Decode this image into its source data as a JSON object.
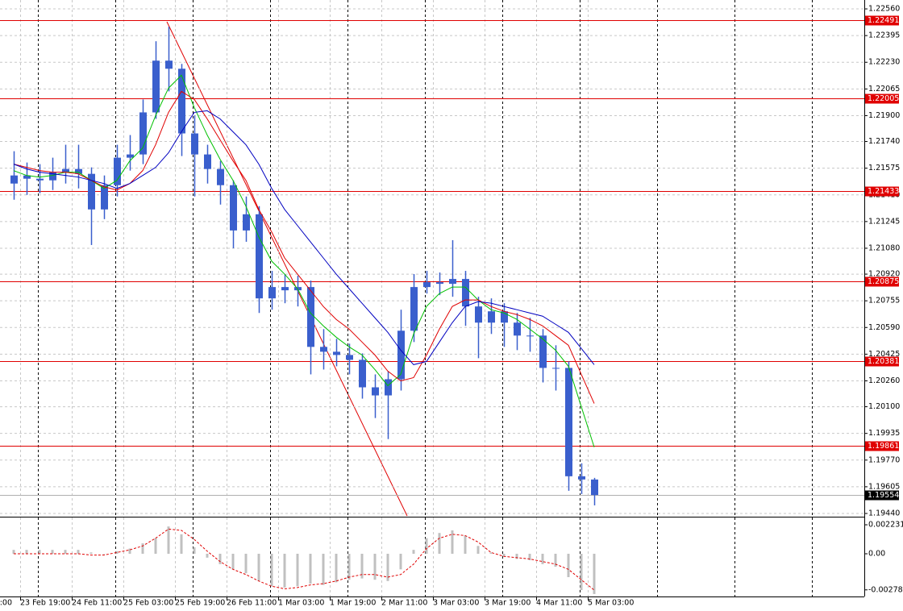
{
  "chart_data": [
    {
      "type": "candlestick",
      "color": "#3a5fcd",
      "categories": [
        null,
        "23 Feb 19:00",
        null,
        null,
        null,
        "24 Feb 11:00",
        null,
        null,
        null,
        "25 Feb 03:00",
        null,
        null,
        null,
        "25 Feb 19:00",
        null,
        null,
        null,
        "26 Feb 11:00",
        null,
        null,
        null,
        "1 Mar 03:00",
        null,
        null,
        null,
        "1 Mar 19:00",
        null,
        null,
        null,
        "2 Mar 11:00",
        null,
        null,
        null,
        "3 Mar 03:00",
        null,
        null,
        null,
        "3 Mar 19:00",
        null,
        null,
        null,
        "4 Mar 11:00",
        null,
        null,
        null,
        "5 Mar 03:00"
      ],
      "x_cut_label": "3:00",
      "open": [
        1.2148,
        1.2153,
        1.2151,
        1.215,
        1.2155,
        1.2157,
        1.2154,
        1.2132,
        1.2147,
        1.2164,
        1.2166,
        1.2192,
        1.2224,
        1.2219,
        1.2179,
        1.2166,
        1.2157,
        1.2147,
        1.2119,
        1.2129,
        1.2077,
        1.2084,
        1.2082,
        1.2084,
        1.2047,
        1.2044,
        1.2042,
        1.2039,
        1.2022,
        1.2017,
        1.2027,
        1.2057,
        1.2084,
        1.2087,
        1.2086,
        1.2089,
        1.2072,
        1.2062,
        1.2069,
        1.2062,
        1.2054,
        1.2054,
        1.2034,
        1.2034,
        1.1967,
        1.1965
      ],
      "high": [
        1.2168,
        1.2161,
        1.216,
        1.2164,
        1.2172,
        1.2172,
        1.2158,
        1.2153,
        1.2172,
        1.2178,
        1.22,
        1.2236,
        1.2245,
        1.2222,
        1.219,
        1.2172,
        1.2162,
        1.215,
        1.214,
        1.2134,
        1.2094,
        1.2092,
        1.2091,
        1.2088,
        1.2058,
        1.2052,
        1.2049,
        1.2043,
        1.203,
        1.2032,
        1.207,
        1.2092,
        1.2094,
        1.2093,
        1.2113,
        1.2094,
        1.2078,
        1.2077,
        1.2074,
        1.2068,
        1.2065,
        1.2058,
        1.2048,
        1.2038,
        1.1975,
        1.1966
      ],
      "low": [
        1.2138,
        1.2141,
        1.2142,
        1.2144,
        1.2148,
        1.2145,
        1.211,
        1.2126,
        1.214,
        1.2156,
        1.216,
        1.2188,
        1.2205,
        1.2165,
        1.214,
        1.2148,
        1.2135,
        1.2108,
        1.2112,
        1.2068,
        1.207,
        1.2074,
        1.2072,
        1.203,
        1.2033,
        1.2035,
        1.203,
        1.2015,
        1.2003,
        1.199,
        1.202,
        1.205,
        1.208,
        1.2079,
        1.2078,
        1.206,
        1.204,
        1.2055,
        1.2047,
        1.2045,
        1.2044,
        1.2025,
        1.202,
        1.1958,
        1.1956,
        1.1949
      ],
      "close": [
        1.2153,
        1.2151,
        1.215,
        1.2155,
        1.2157,
        1.2154,
        1.2132,
        1.2147,
        1.2164,
        1.2166,
        1.2192,
        1.2224,
        1.2219,
        1.2179,
        1.2166,
        1.2157,
        1.2147,
        1.2119,
        1.2129,
        1.2077,
        1.2084,
        1.2082,
        1.2084,
        1.2047,
        1.2044,
        1.2042,
        1.2039,
        1.2022,
        1.2017,
        1.2027,
        1.2057,
        1.2084,
        1.2087,
        1.2086,
        1.2089,
        1.2072,
        1.2062,
        1.2069,
        1.2062,
        1.2054,
        1.2054,
        1.2034,
        1.2034,
        1.1967,
        1.1965,
        1.19554
      ],
      "series": [
        {
          "color": "#00c000",
          "values": [
            1.2156,
            1.2153,
            1.2152,
            1.2153,
            1.2155,
            1.2155,
            1.215,
            1.2145,
            1.215,
            1.2162,
            1.217,
            1.219,
            1.2207,
            1.2215,
            1.2195,
            1.2178,
            1.2163,
            1.215,
            1.2134,
            1.2115,
            1.21,
            1.2092,
            1.2083,
            1.2068,
            1.206,
            1.2053,
            1.2047,
            1.2042,
            1.2033,
            1.2023,
            1.203,
            1.2055,
            1.2072,
            1.208,
            1.2084,
            1.2084,
            1.2076,
            1.207,
            1.2068,
            1.2064,
            1.2058,
            1.2052,
            1.2045,
            1.2035,
            1.201,
            1.1985
          ]
        },
        {
          "color": "#e00000",
          "values": [
            1.216,
            1.2158,
            1.2156,
            1.2155,
            1.2155,
            1.2154,
            1.215,
            1.2146,
            1.2144,
            1.2148,
            1.2156,
            1.2172,
            1.2192,
            1.2205,
            1.22,
            1.2188,
            1.2175,
            1.2162,
            1.215,
            1.2132,
            1.2118,
            1.2102,
            1.2092,
            1.2082,
            1.2072,
            1.2064,
            1.2058,
            1.205,
            1.2042,
            1.2032,
            1.2026,
            1.2028,
            1.2042,
            1.2058,
            1.2072,
            1.2076,
            1.2076,
            1.2072,
            1.2069,
            1.2067,
            1.2064,
            1.206,
            1.2054,
            1.2048,
            1.203,
            1.2012
          ]
        },
        {
          "color": "#0000c0",
          "values": [
            1.216,
            1.2157,
            1.2155,
            1.2154,
            1.2153,
            1.2152,
            1.215,
            1.2148,
            1.2145,
            1.2148,
            1.2153,
            1.2158,
            1.2167,
            1.218,
            1.2192,
            1.2193,
            1.2188,
            1.218,
            1.2172,
            1.216,
            1.2145,
            1.2132,
            1.2122,
            1.2112,
            1.2102,
            1.2092,
            1.2083,
            1.2074,
            1.2065,
            1.2056,
            1.2045,
            1.2036,
            1.2038,
            1.205,
            1.2062,
            1.2072,
            1.2075,
            1.2074,
            1.2072,
            1.207,
            1.2068,
            1.2066,
            1.2061,
            1.2056,
            1.2046,
            1.2036
          ]
        }
      ],
      "levels": [
        1.22491,
        1.22005,
        1.21433,
        1.20875,
        1.20381,
        1.19861
      ],
      "level_color": "#e00000",
      "current_price": 1.19554,
      "ylim": [
        1.19425,
        1.22615
      ],
      "yticks": [
        {
          "value": 1.2256,
          "label": "1.22560"
        },
        1.22395,
        {
          "value": 1.2223,
          "label": "1.22230"
        },
        1.22065,
        {
          "value": 1.219,
          "label": "1.21900"
        },
        {
          "value": 1.2174,
          "label": "1.21740"
        },
        1.21575,
        {
          "value": 1.2141,
          "label": "1.21410"
        },
        1.21245,
        {
          "value": 1.2108,
          "label": "1.21080"
        },
        {
          "value": 1.2092,
          "label": "1.20920"
        },
        1.20755,
        {
          "value": 1.2059,
          "label": "1.20590"
        },
        1.20425,
        {
          "value": 1.2026,
          "label": "1.20260"
        },
        {
          "value": 1.201,
          "label": "1.20100"
        },
        1.19935,
        {
          "value": 1.1977,
          "label": "1.19770"
        },
        1.19605,
        {
          "value": 1.1944,
          "label": "1.19440"
        }
      ],
      "grid": true
    },
    {
      "type": "macd",
      "color": "#c0c0c0",
      "values": [
        0.0003,
        0.0003,
        0.0003,
        0.0003,
        0.0003,
        0.0003,
        0.0001,
        0.0,
        0.0002,
        0.0004,
        0.0008,
        0.0012,
        0.0021,
        0.0015,
        0.0005,
        -0.0003,
        -0.0008,
        -0.0012,
        -0.0015,
        -0.0021,
        -0.0025,
        -0.0026,
        -0.0025,
        -0.0023,
        -0.0024,
        -0.0022,
        -0.002,
        -0.0019,
        -0.002,
        -0.0021,
        -0.0012,
        0.0003,
        0.0012,
        0.0016,
        0.0018,
        0.0014,
        0.0006,
        0.0001,
        -0.0002,
        -0.0004,
        -0.0005,
        -0.0008,
        -0.001,
        -0.0018,
        -0.0028,
        -0.0031
      ],
      "signal": {
        "color": "#e00000",
        "values": [
          0.0,
          0.0,
          0.0,
          0.0,
          0.0,
          0.0,
          -0.0001,
          -0.0001,
          0.0001,
          0.0003,
          0.0006,
          0.0012,
          0.0019,
          0.0018,
          0.0011,
          0.0002,
          -0.0006,
          -0.0012,
          -0.0016,
          -0.0021,
          -0.0025,
          -0.0027,
          -0.0026,
          -0.0024,
          -0.0023,
          -0.0021,
          -0.0018,
          -0.0016,
          -0.0016,
          -0.0018,
          -0.0016,
          -0.0008,
          0.0004,
          0.0012,
          0.0015,
          0.0014,
          0.0009,
          0.0001,
          -0.0002,
          -0.0003,
          -0.0004,
          -0.0006,
          -0.0008,
          -0.0012,
          -0.002,
          -0.0028
        ]
      },
      "ylim": [
        -0.00329,
        0.00273
      ],
      "yticks": [
        0.002231,
        {
          "value": 0,
          "label": "0.00"
        },
        -0.00278
      ]
    }
  ]
}
